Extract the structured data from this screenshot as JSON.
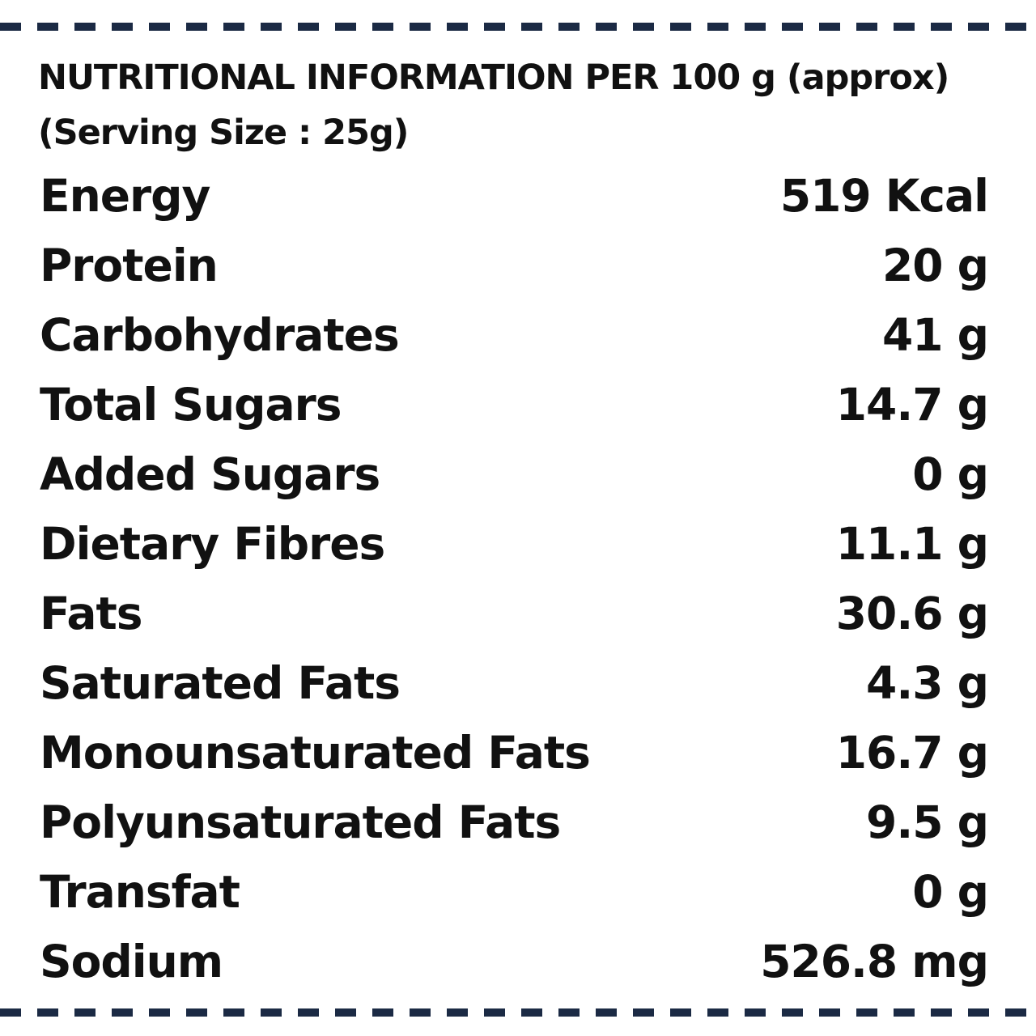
{
  "colors": {
    "text": "#111111",
    "dashed_border": "#1b2a44",
    "background": "#ffffff"
  },
  "heading": {
    "line1": "NUTRITIONAL INFORMATION PER 100 g (approx)",
    "line2": "(Serving Size : 25g)"
  },
  "rows": [
    {
      "label": "Energy",
      "value": "519 Kcal"
    },
    {
      "label": "Protein",
      "value": "20 g"
    },
    {
      "label": "Carbohydrates",
      "value": "41 g"
    },
    {
      "label": "Total Sugars",
      "value": "14.7 g"
    },
    {
      "label": "Added Sugars",
      "value": "0 g"
    },
    {
      "label": "Dietary Fibres",
      "value": "11.1 g"
    },
    {
      "label": "Fats",
      "value": "30.6 g"
    },
    {
      "label": "Saturated Fats",
      "value": "4.3 g"
    },
    {
      "label": "Monounsaturated Fats",
      "value": "16.7 g"
    },
    {
      "label": "Polyunsaturated Fats",
      "value": "9.5 g"
    },
    {
      "label": "Transfat",
      "value": "0 g"
    },
    {
      "label": "Sodium",
      "value": "526.8 mg"
    }
  ]
}
